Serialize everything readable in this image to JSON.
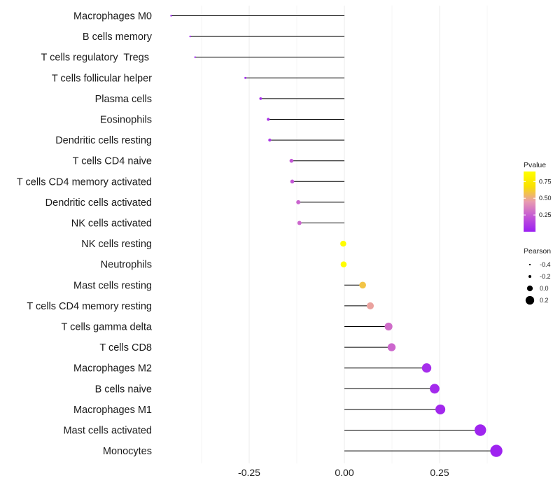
{
  "chart_data": {
    "type": "lollipop",
    "categories": [
      "Macrophages M0",
      "B cells memory",
      "T cells regulatory  Tregs ",
      "T cells follicular helper",
      "Plasma cells",
      "Eosinophils",
      "Dendritic cells resting",
      "T cells CD4 naive",
      "T cells CD4 memory activated",
      "Dendritic cells activated",
      "NK cells activated",
      "NK cells resting",
      "Neutrophils",
      "Mast cells resting",
      "T cells CD4 memory resting",
      "T cells gamma delta",
      "T cells CD8",
      "Macrophages M2",
      "B cells naive",
      "Macrophages M1",
      "Mast cells activated",
      "Monocytes"
    ],
    "pearson": [
      -0.455,
      -0.405,
      -0.392,
      -0.26,
      -0.22,
      -0.2,
      -0.196,
      -0.139,
      -0.137,
      -0.121,
      -0.118,
      -0.003,
      -0.002,
      0.048,
      0.068,
      0.116,
      0.124,
      0.216,
      0.237,
      0.252,
      0.357,
      0.399
    ],
    "pvalue": [
      0.02,
      0.03,
      0.03,
      0.05,
      0.08,
      0.12,
      0.13,
      0.3,
      0.3,
      0.36,
      0.37,
      0.99,
      0.99,
      0.72,
      0.62,
      0.4,
      0.37,
      0.08,
      0.06,
      0.05,
      0.03,
      0.02
    ],
    "xlim": [
      -0.5,
      0.42
    ],
    "xticks": [
      -0.25,
      0.0,
      0.25
    ],
    "xtick_labels": [
      "-0.25",
      "0.00",
      "0.25"
    ],
    "xlabel": "",
    "ylabel": "",
    "grid": true,
    "legends": {
      "color": {
        "title": "Pvalue",
        "values": [
          0.25,
          0.5,
          0.75
        ],
        "labels": [
          "0.25",
          "0.50",
          "0.75"
        ],
        "range": [
          0.0,
          1.0
        ],
        "colors": [
          "#9b1ff2",
          "#c356d6",
          "#e89bb0",
          "#f9e000",
          "#ffff00"
        ]
      },
      "size": {
        "title": "Pearson",
        "values": [
          -0.4,
          -0.2,
          0.0,
          0.2
        ],
        "labels": [
          "-0.4",
          "-0.2",
          "0.0",
          "0.2"
        ]
      }
    }
  }
}
